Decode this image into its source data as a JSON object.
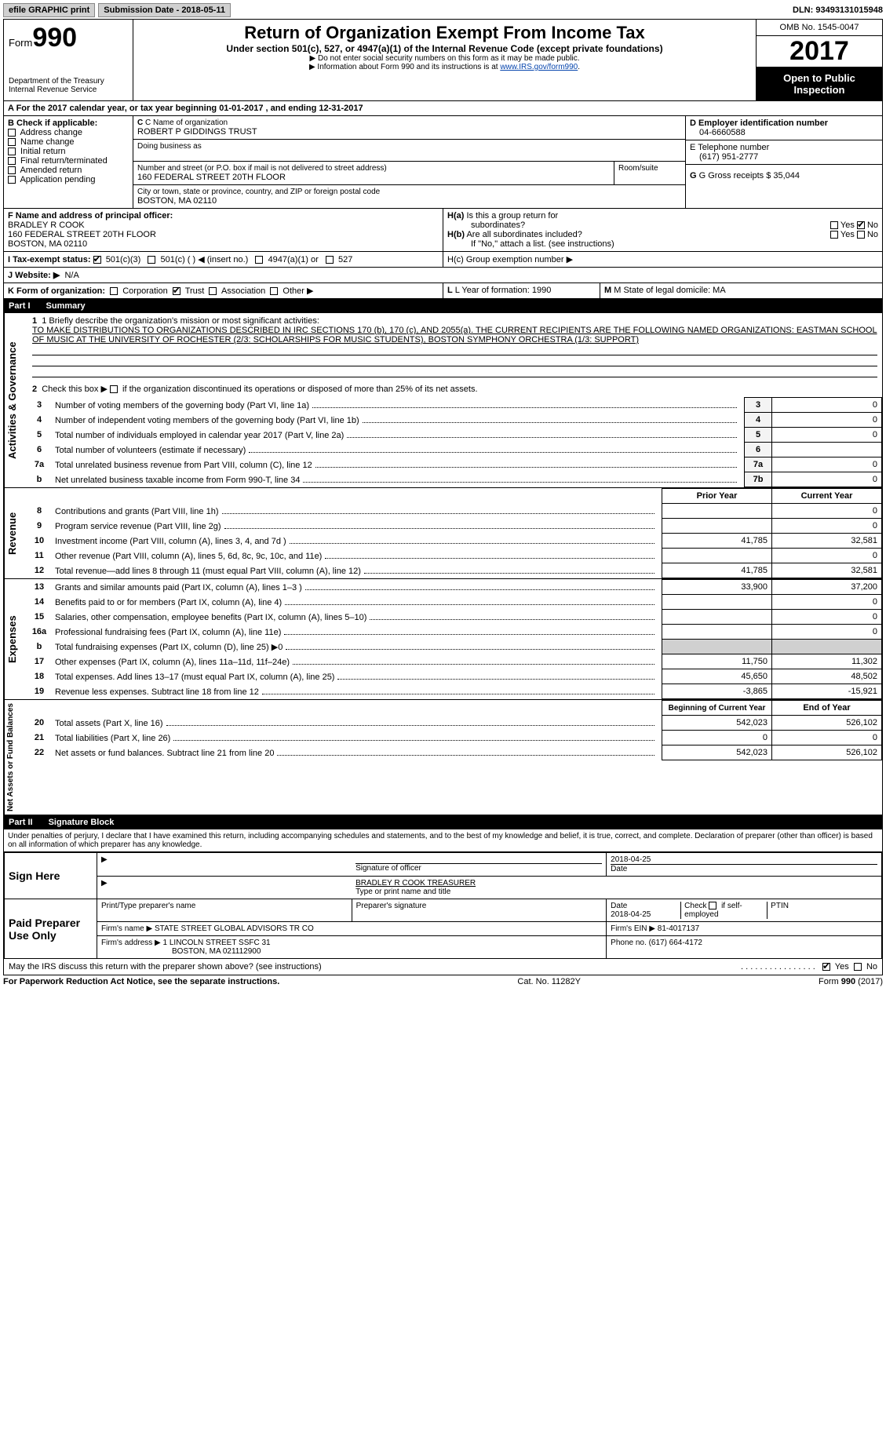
{
  "topbar": {
    "efile": "efile GRAPHIC print",
    "sub_label": "Submission Date - 2018-05-11",
    "dln": "DLN: 93493131015948"
  },
  "header": {
    "form_label": "Form",
    "form_no": "990",
    "dept": "Department of the Treasury",
    "irs": "Internal Revenue Service",
    "title": "Return of Organization Exempt From Income Tax",
    "sub1": "Under section 501(c), 527, or 4947(a)(1) of the Internal Revenue Code (except private foundations)",
    "sub2": "▶ Do not enter social security numbers on this form as it may be made public.",
    "sub3_pre": "▶ Information about Form 990 and its instructions is at ",
    "sub3_link": "www.IRS.gov/form990",
    "omb": "OMB No. 1545-0047",
    "year": "2017",
    "inspect1": "Open to Public",
    "inspect2": "Inspection"
  },
  "sectionA": {
    "line": "A   For the 2017 calendar year, or tax year beginning 01-01-2017   , and ending 12-31-2017",
    "B_label": "B Check if applicable:",
    "b_items": [
      "Address change",
      "Name change",
      "Initial return",
      "Final return/terminated",
      "Amended return",
      "Application pending"
    ],
    "C_label": "C Name of organization",
    "org": "ROBERT P GIDDINGS TRUST",
    "dba_label": "Doing business as",
    "addr_label": "Number and street (or P.O. box if mail is not delivered to street address)",
    "room_label": "Room/suite",
    "addr": "160 FEDERAL STREET 20TH FLOOR",
    "city_label": "City or town, state or province, country, and ZIP or foreign postal code",
    "city": "BOSTON, MA  02110",
    "D_label": "D Employer identification number",
    "ein": "04-6660588",
    "E_label": "E Telephone number",
    "phone": "(617) 951-2777",
    "G_label": "G Gross receipts $ 35,044",
    "F_label": "F  Name and address of principal officer:",
    "F_name": "BRADLEY R COOK",
    "F_addr1": "160 FEDERAL STREET 20TH FLOOR",
    "F_addr2": "BOSTON, MA  02110",
    "Ha": "H(a)  Is this a group return for subordinates?",
    "Hb": "H(b)  Are all subordinates included?",
    "Hb_note": "If \"No,\" attach a list. (see instructions)",
    "Hc": "H(c)  Group exemption number ▶",
    "yes": "Yes",
    "no": "No",
    "I_label": "I   Tax-exempt status:",
    "I_501c3": "501(c)(3)",
    "I_501c": "501(c) (   ) ◀ (insert no.)",
    "I_4947": "4947(a)(1) or",
    "I_527": "527",
    "J_label": "J  Website: ▶",
    "J_val": "N/A",
    "K_label": "K Form of organization:",
    "K_corp": "Corporation",
    "K_trust": "Trust",
    "K_assoc": "Association",
    "K_other": "Other ▶",
    "L_label": "L Year of formation: 1990",
    "M_label": "M State of legal domicile: MA"
  },
  "part1": {
    "header": "Part I",
    "title": "Summary",
    "side_act": "Activities & Governance",
    "side_rev": "Revenue",
    "side_exp": "Expenses",
    "side_net": "Net Assets or Fund Balances",
    "l1_label": "1  Briefly describe the organization's mission or most significant activities:",
    "l1_text": "TO MAKE DISTRIBUTIONS TO ORGANIZATIONS DESCRIBED IN IRC SECTIONS 170 (b), 170 (c), AND 2055(a). THE CURRENT RECIPIENTS ARE THE FOLLOWING NAMED ORGANIZATIONS: EASTMAN SCHOOL OF MUSIC AT THE UNIVERSITY OF ROCHESTER (2/3: SCHOLARSHIPS FOR MUSIC STUDENTS), BOSTON SYMPHONY ORCHESTRA (1/3: SUPPORT)",
    "l2": "2   Check this box ▶        if the organization discontinued its operations or disposed of more than 25% of its net assets.",
    "rows_gov": [
      {
        "n": "3",
        "t": "Number of voting members of the governing body (Part VI, line 1a)",
        "ln": "3",
        "v": "0"
      },
      {
        "n": "4",
        "t": "Number of independent voting members of the governing body (Part VI, line 1b)",
        "ln": "4",
        "v": "0"
      },
      {
        "n": "5",
        "t": "Total number of individuals employed in calendar year 2017 (Part V, line 2a)",
        "ln": "5",
        "v": "0"
      },
      {
        "n": "6",
        "t": "Total number of volunteers (estimate if necessary)",
        "ln": "6",
        "v": ""
      },
      {
        "n": "7a",
        "t": "Total unrelated business revenue from Part VIII, column (C), line 12",
        "ln": "7a",
        "v": "0"
      },
      {
        "n": "b",
        "t": "Net unrelated business taxable income from Form 990-T, line 34",
        "ln": "7b",
        "v": "0"
      }
    ],
    "col_prior": "Prior Year",
    "col_curr": "Current Year",
    "rows_rev": [
      {
        "n": "8",
        "t": "Contributions and grants (Part VIII, line 1h)",
        "p": "",
        "c": "0"
      },
      {
        "n": "9",
        "t": "Program service revenue (Part VIII, line 2g)",
        "p": "",
        "c": "0"
      },
      {
        "n": "10",
        "t": "Investment income (Part VIII, column (A), lines 3, 4, and 7d )",
        "p": "41,785",
        "c": "32,581"
      },
      {
        "n": "11",
        "t": "Other revenue (Part VIII, column (A), lines 5, 6d, 8c, 9c, 10c, and 11e)",
        "p": "",
        "c": "0"
      },
      {
        "n": "12",
        "t": "Total revenue—add lines 8 through 11 (must equal Part VIII, column (A), line 12)",
        "p": "41,785",
        "c": "32,581"
      }
    ],
    "rows_exp": [
      {
        "n": "13",
        "t": "Grants and similar amounts paid (Part IX, column (A), lines 1–3 )",
        "p": "33,900",
        "c": "37,200"
      },
      {
        "n": "14",
        "t": "Benefits paid to or for members (Part IX, column (A), line 4)",
        "p": "",
        "c": "0"
      },
      {
        "n": "15",
        "t": "Salaries, other compensation, employee benefits (Part IX, column (A), lines 5–10)",
        "p": "",
        "c": "0"
      },
      {
        "n": "16a",
        "t": "Professional fundraising fees (Part IX, column (A), line 11e)",
        "p": "",
        "c": "0"
      },
      {
        "n": "b",
        "t": "Total fundraising expenses (Part IX, column (D), line 25) ▶0",
        "p": "SHADE",
        "c": "SHADE"
      },
      {
        "n": "17",
        "t": "Other expenses (Part IX, column (A), lines 11a–11d, 11f–24e)",
        "p": "11,750",
        "c": "11,302"
      },
      {
        "n": "18",
        "t": "Total expenses. Add lines 13–17 (must equal Part IX, column (A), line 25)",
        "p": "45,650",
        "c": "48,502"
      },
      {
        "n": "19",
        "t": "Revenue less expenses. Subtract line 18 from line 12",
        "p": "-3,865",
        "c": "-15,921"
      }
    ],
    "col_beg": "Beginning of Current Year",
    "col_end": "End of Year",
    "rows_net": [
      {
        "n": "20",
        "t": "Total assets (Part X, line 16)",
        "p": "542,023",
        "c": "526,102"
      },
      {
        "n": "21",
        "t": "Total liabilities (Part X, line 26)",
        "p": "0",
        "c": "0"
      },
      {
        "n": "22",
        "t": "Net assets or fund balances. Subtract line 21 from line 20",
        "p": "542,023",
        "c": "526,102"
      }
    ]
  },
  "part2": {
    "header": "Part II",
    "title": "Signature Block",
    "decl": "Under penalties of perjury, I declare that I have examined this return, including accompanying schedules and statements, and to the best of my knowledge and belief, it is true, correct, and complete. Declaration of preparer (other than officer) is based on all information of which preparer has any knowledge.",
    "sign_here": "Sign Here",
    "sig_officer": "Signature of officer",
    "sig_date": "2018-04-25",
    "date_label": "Date",
    "officer_name": "BRADLEY R COOK TREASURER",
    "type_name": "Type or print name and title",
    "paid": "Paid Preparer Use Only",
    "prep_name_label": "Print/Type preparer's name",
    "prep_sig_label": "Preparer's signature",
    "prep_date_label": "Date",
    "prep_date": "2018-04-25",
    "check_if": "Check         if self-employed",
    "ptin": "PTIN",
    "firm_name_label": "Firm's name      ▶",
    "firm_name": "STATE STREET GLOBAL ADVISORS TR CO",
    "firm_ein_label": "Firm's EIN ▶",
    "firm_ein": "81-4017137",
    "firm_addr_label": "Firm's address ▶",
    "firm_addr": "1 LINCOLN STREET SSFC 31",
    "firm_city": "BOSTON, MA  021112900",
    "firm_phone_label": "Phone no.",
    "firm_phone": "(617) 664-4172",
    "may_irs": "May the IRS discuss this return with the preparer shown above? (see instructions)"
  },
  "footer": {
    "left": "For Paperwork Reduction Act Notice, see the separate instructions.",
    "mid": "Cat. No. 11282Y",
    "right": "Form 990 (2017)"
  }
}
